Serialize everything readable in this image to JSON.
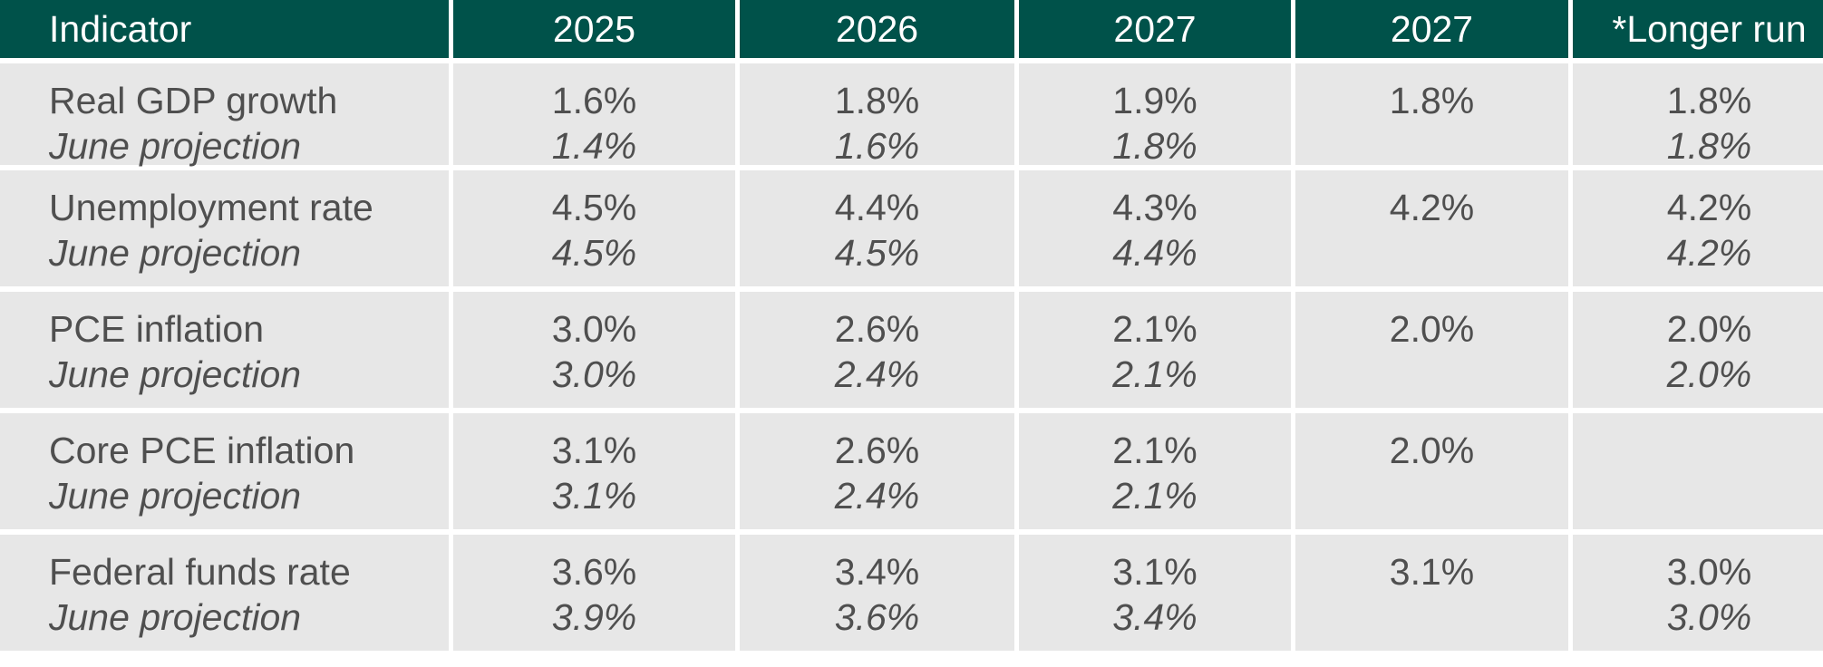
{
  "colors": {
    "header_bg": "#00524a",
    "header_text": "#ffffff",
    "cell_bg": "#e7e7e7",
    "cell_text": "#4f4f4f",
    "gridline": "#ffffff"
  },
  "header": [
    "Indicator",
    "2025",
    "2026",
    "2027",
    "2027",
    "*Longer run"
  ],
  "rows": [
    {
      "indicator": "Real GDP growth",
      "sub_label": "June projection",
      "values": [
        "1.6%",
        "1.8%",
        "1.9%",
        "1.8%",
        "1.8%"
      ],
      "june": [
        "1.4%",
        "1.6%",
        "1.8%",
        "",
        "1.8%"
      ]
    },
    {
      "indicator": "Unemployment rate",
      "sub_label": "June projection",
      "values": [
        "4.5%",
        "4.4%",
        "4.3%",
        "4.2%",
        "4.2%"
      ],
      "june": [
        "4.5%",
        "4.5%",
        "4.4%",
        "",
        "4.2%"
      ]
    },
    {
      "indicator": "PCE inflation",
      "sub_label": "June projection",
      "values": [
        "3.0%",
        "2.6%",
        "2.1%",
        "2.0%",
        "2.0%"
      ],
      "june": [
        "3.0%",
        "2.4%",
        "2.1%",
        "",
        "2.0%"
      ]
    },
    {
      "indicator": "Core PCE inflation",
      "sub_label": "June projection",
      "values": [
        "3.1%",
        "2.6%",
        "2.1%",
        "2.0%",
        ""
      ],
      "june": [
        "3.1%",
        "2.4%",
        "2.1%",
        "",
        ""
      ]
    },
    {
      "indicator": "Federal funds rate",
      "sub_label": "June projection",
      "values": [
        "3.6%",
        "3.4%",
        "3.1%",
        "3.1%",
        "3.0%"
      ],
      "june": [
        "3.9%",
        "3.6%",
        "3.4%",
        "",
        "3.0%"
      ]
    }
  ]
}
